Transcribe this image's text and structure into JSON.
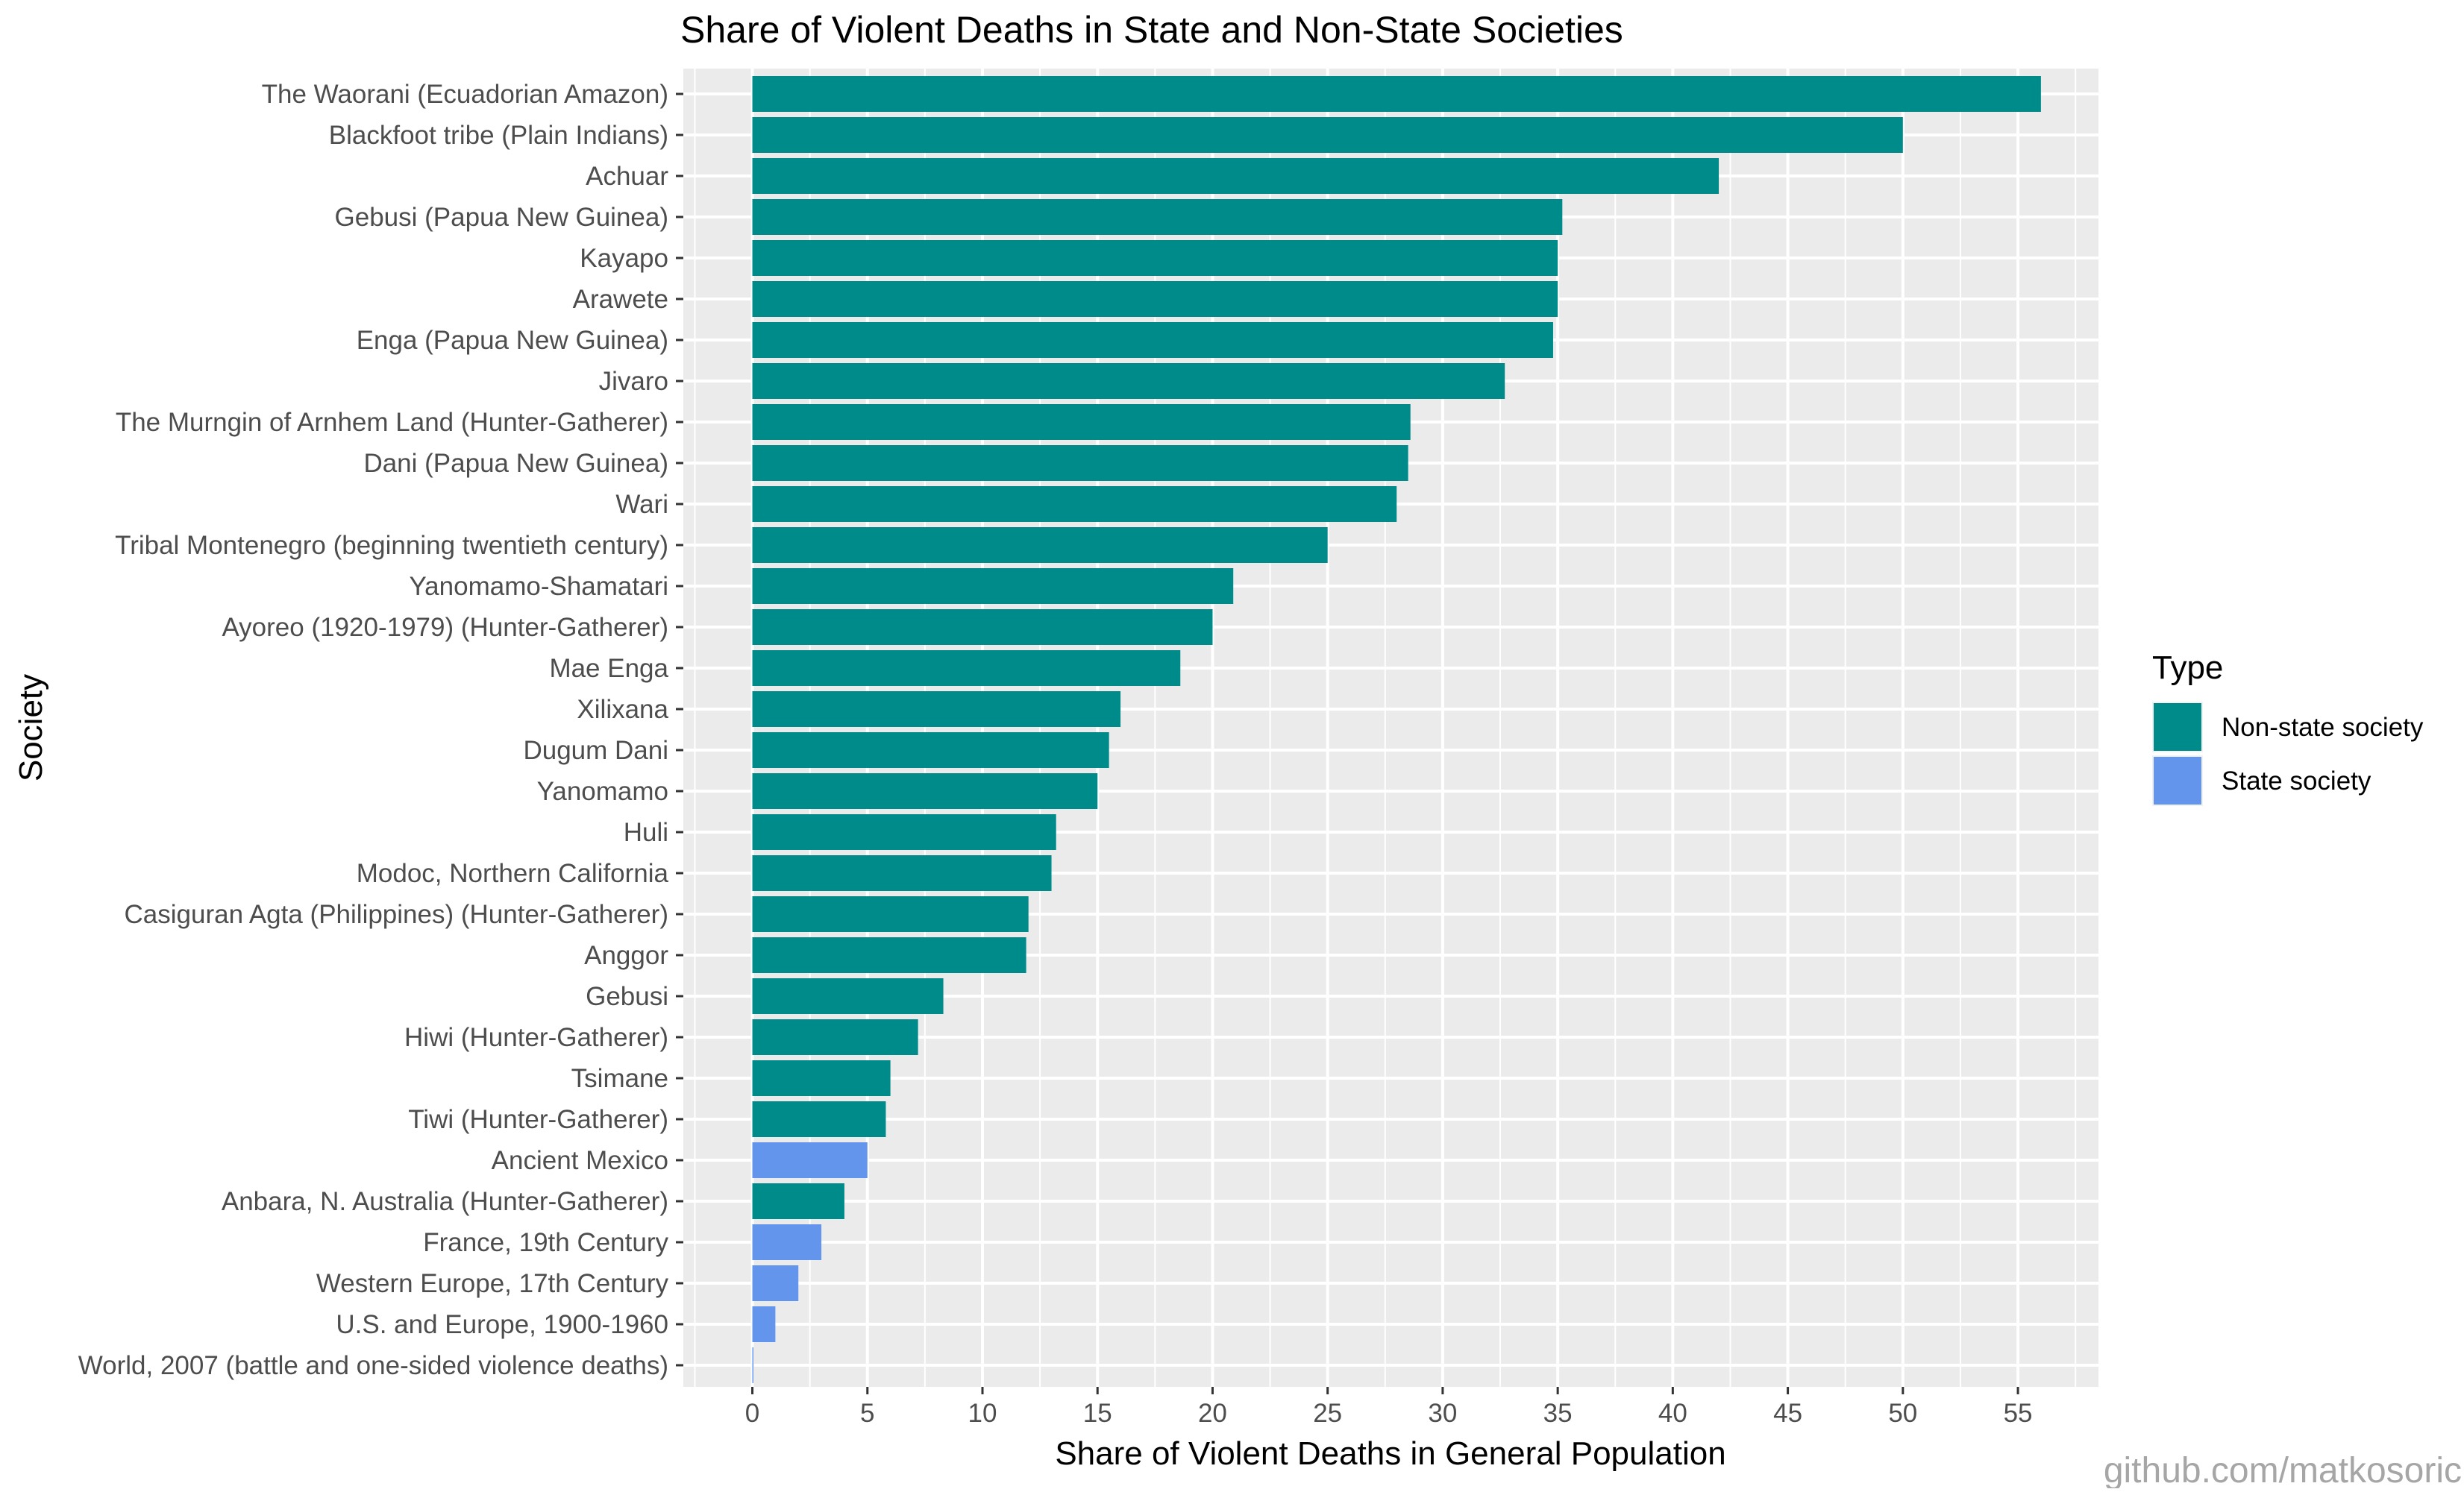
{
  "chart_data": {
    "type": "bar",
    "orientation": "horizontal",
    "title": "Share of Violent Deaths in State and Non-State Societies",
    "xlabel": "Share of Violent Deaths in General Population",
    "ylabel": "Society",
    "xlim": [
      -3,
      58.5
    ],
    "x_ticks": [
      0,
      5,
      10,
      15,
      20,
      25,
      30,
      35,
      40,
      45,
      50,
      55
    ],
    "grid": true,
    "legend": {
      "title": "Type",
      "position": "right",
      "entries": [
        {
          "label": "Non-state society",
          "color": "#008B8B"
        },
        {
          "label": "State society",
          "color": "#6495ED"
        }
      ]
    },
    "categories": [
      "The Waorani (Ecuadorian Amazon)",
      "Blackfoot tribe (Plain Indians)",
      "Achuar",
      "Gebusi (Papua New Guinea)",
      "Kayapo",
      "Arawete",
      "Enga (Papua New Guinea)",
      "Jivaro",
      "The Murngin of Arnhem Land (Hunter-Gatherer)",
      "Dani (Papua New Guinea)",
      "Wari",
      "Tribal Montenegro (beginning twentieth century)",
      "Yanomamo-Shamatari",
      "Ayoreo (1920-1979) (Hunter-Gatherer)",
      "Mae Enga",
      "Xilixana",
      "Dugum Dani",
      "Yanomamo",
      "Huli",
      "Modoc, Northern California",
      "Casiguran Agta (Philippines) (Hunter-Gatherer)",
      "Anggor",
      "Gebusi",
      "Hiwi (Hunter-Gatherer)",
      "Tsimane",
      "Tiwi (Hunter-Gatherer)",
      "Ancient Mexico",
      "Anbara, N. Australia (Hunter-Gatherer)",
      "France, 19th Century",
      "Western Europe, 17th Century",
      "U.S. and Europe, 1900-1960",
      "World, 2007 (battle and one-sided violence deaths)"
    ],
    "values": [
      56,
      50,
      42,
      35.2,
      35,
      35,
      34.8,
      32.7,
      28.6,
      28.5,
      28,
      25,
      20.9,
      20,
      18.6,
      16,
      15.5,
      15,
      13.2,
      13,
      12,
      11.9,
      8.3,
      7.2,
      6,
      5.8,
      5,
      4,
      3,
      2,
      1,
      0.04
    ],
    "types": [
      "Non-state society",
      "Non-state society",
      "Non-state society",
      "Non-state society",
      "Non-state society",
      "Non-state society",
      "Non-state society",
      "Non-state society",
      "Non-state society",
      "Non-state society",
      "Non-state society",
      "Non-state society",
      "Non-state society",
      "Non-state society",
      "Non-state society",
      "Non-state society",
      "Non-state society",
      "Non-state society",
      "Non-state society",
      "Non-state society",
      "Non-state society",
      "Non-state society",
      "Non-state society",
      "Non-state society",
      "Non-state society",
      "Non-state society",
      "State society",
      "Non-state society",
      "State society",
      "State society",
      "State society",
      "State society"
    ]
  },
  "caption": "github.com/matkosoric",
  "colors": {
    "panel_background": "#EBEBEB",
    "grid": "#FFFFFF",
    "text": "#000000",
    "tick_text": "#4D4D4D",
    "caption": "#A6A6A6"
  }
}
